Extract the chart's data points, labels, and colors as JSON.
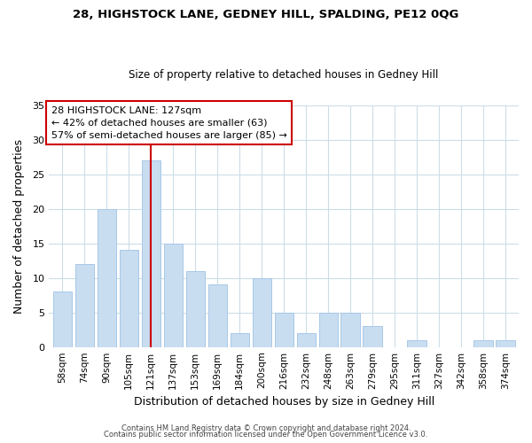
{
  "title1": "28, HIGHSTOCK LANE, GEDNEY HILL, SPALDING, PE12 0QG",
  "title2": "Size of property relative to detached houses in Gedney Hill",
  "xlabel": "Distribution of detached houses by size in Gedney Hill",
  "ylabel": "Number of detached properties",
  "categories": [
    "58sqm",
    "74sqm",
    "90sqm",
    "105sqm",
    "121sqm",
    "137sqm",
    "153sqm",
    "169sqm",
    "184sqm",
    "200sqm",
    "216sqm",
    "232sqm",
    "248sqm",
    "263sqm",
    "279sqm",
    "295sqm",
    "311sqm",
    "327sqm",
    "342sqm",
    "358sqm",
    "374sqm"
  ],
  "values": [
    8,
    12,
    20,
    14,
    27,
    15,
    11,
    9,
    2,
    10,
    5,
    2,
    5,
    5,
    3,
    0,
    1,
    0,
    0,
    1,
    1
  ],
  "bar_color": "#c8ddf0",
  "bar_edge_color": "#a8c8e8",
  "highlight_index": 4,
  "highlight_line_color": "#cc0000",
  "ylim": [
    0,
    35
  ],
  "yticks": [
    0,
    5,
    10,
    15,
    20,
    25,
    30,
    35
  ],
  "annotation_box_edge": "#cc0000",
  "annotation_lines": [
    "28 HIGHSTOCK LANE: 127sqm",
    "← 42% of detached houses are smaller (63)",
    "57% of semi-detached houses are larger (85) →"
  ],
  "footer1": "Contains HM Land Registry data © Crown copyright and database right 2024.",
  "footer2": "Contains public sector information licensed under the Open Government Licence v3.0.",
  "background_color": "#ffffff",
  "grid_color": "#ccdde8"
}
